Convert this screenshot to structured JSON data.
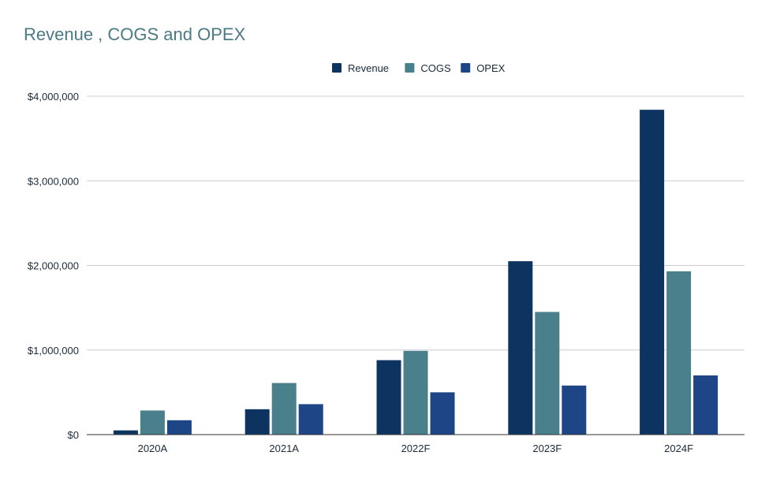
{
  "chart_data": {
    "type": "bar",
    "title": "Revenue , COGS and OPEX",
    "xlabel": "",
    "ylabel": "",
    "categories": [
      "2020A",
      "2021A",
      "2022F",
      "2023F",
      "2024F"
    ],
    "series": [
      {
        "name": "Revenue",
        "color": "#0d3461",
        "values": [
          50000,
          300000,
          880000,
          2050000,
          3840000
        ]
      },
      {
        "name": "COGS",
        "color": "#4a7f8c",
        "values": [
          285000,
          610000,
          990000,
          1450000,
          1930000
        ]
      },
      {
        "name": "OPEX",
        "color": "#1e4585",
        "values": [
          170000,
          360000,
          500000,
          580000,
          700000
        ]
      }
    ],
    "ylim": [
      0,
      4000000
    ],
    "yticks": [
      0,
      1000000,
      2000000,
      3000000,
      4000000
    ],
    "ytick_labels": [
      "$0",
      "$1,000,000",
      "$2,000,000",
      "$3,000,000",
      "$4,000,000"
    ],
    "grid": true,
    "legend_position": "top-center"
  }
}
